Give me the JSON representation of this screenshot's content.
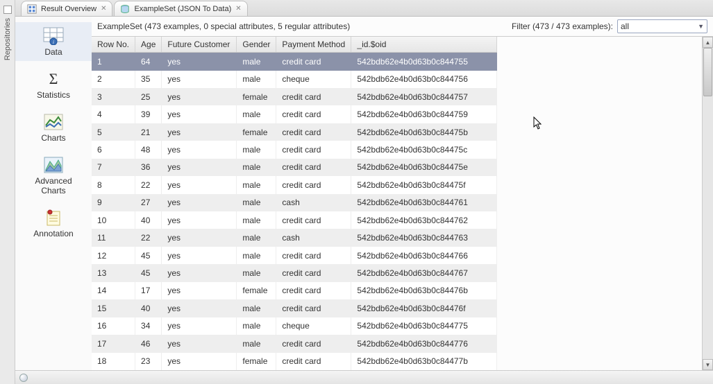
{
  "leftRail": {
    "label": "Repositories"
  },
  "tabs": [
    {
      "label": "Result Overview",
      "icon": "result-icon"
    },
    {
      "label": "ExampleSet (JSON To Data)",
      "icon": "db-icon"
    }
  ],
  "viewNav": {
    "items": [
      {
        "id": "data",
        "label": "Data",
        "active": true
      },
      {
        "id": "stats",
        "label": "Statistics",
        "active": false
      },
      {
        "id": "charts",
        "label": "Charts",
        "active": false
      },
      {
        "id": "advcharts",
        "label": "Advanced\nCharts",
        "active": false
      },
      {
        "id": "annotation",
        "label": "Annotation",
        "active": false
      }
    ]
  },
  "topbar": {
    "summary": "ExampleSet (473 examples, 0 special attributes, 5 regular attributes)",
    "filterLabel": "Filter (473 / 473 examples):",
    "filterValue": "all"
  },
  "table": {
    "columns": [
      "Row No.",
      "Age",
      "Future Customer",
      "Gender",
      "Payment Method",
      "_id.$oid"
    ],
    "colClasses": [
      "col-row",
      "col-age",
      "col-future",
      "col-gender",
      "col-pay",
      "col-id"
    ],
    "selectedRow": 0,
    "rows": [
      [
        "1",
        "64",
        "yes",
        "male",
        "credit card",
        "542bdb62e4b0d63b0c844755"
      ],
      [
        "2",
        "35",
        "yes",
        "male",
        "cheque",
        "542bdb62e4b0d63b0c844756"
      ],
      [
        "3",
        "25",
        "yes",
        "female",
        "credit card",
        "542bdb62e4b0d63b0c844757"
      ],
      [
        "4",
        "39",
        "yes",
        "male",
        "credit card",
        "542bdb62e4b0d63b0c844759"
      ],
      [
        "5",
        "21",
        "yes",
        "female",
        "credit card",
        "542bdb62e4b0d63b0c84475b"
      ],
      [
        "6",
        "48",
        "yes",
        "male",
        "credit card",
        "542bdb62e4b0d63b0c84475c"
      ],
      [
        "7",
        "36",
        "yes",
        "male",
        "credit card",
        "542bdb62e4b0d63b0c84475e"
      ],
      [
        "8",
        "22",
        "yes",
        "male",
        "credit card",
        "542bdb62e4b0d63b0c84475f"
      ],
      [
        "9",
        "27",
        "yes",
        "male",
        "cash",
        "542bdb62e4b0d63b0c844761"
      ],
      [
        "10",
        "40",
        "yes",
        "male",
        "credit card",
        "542bdb62e4b0d63b0c844762"
      ],
      [
        "11",
        "22",
        "yes",
        "male",
        "cash",
        "542bdb62e4b0d63b0c844763"
      ],
      [
        "12",
        "45",
        "yes",
        "male",
        "credit card",
        "542bdb62e4b0d63b0c844766"
      ],
      [
        "13",
        "45",
        "yes",
        "male",
        "credit card",
        "542bdb62e4b0d63b0c844767"
      ],
      [
        "14",
        "17",
        "yes",
        "female",
        "credit card",
        "542bdb62e4b0d63b0c84476b"
      ],
      [
        "15",
        "40",
        "yes",
        "male",
        "credit card",
        "542bdb62e4b0d63b0c84476f"
      ],
      [
        "16",
        "34",
        "yes",
        "male",
        "cheque",
        "542bdb62e4b0d63b0c844775"
      ],
      [
        "17",
        "46",
        "yes",
        "male",
        "credit card",
        "542bdb62e4b0d63b0c844776"
      ],
      [
        "18",
        "23",
        "yes",
        "female",
        "credit card",
        "542bdb62e4b0d63b0c84477b"
      ]
    ]
  },
  "colors": {
    "selectedRow": "#8b92a9",
    "rowAlt": "#eeeeee",
    "headerGradTop": "#f4f4f4",
    "headerGradBot": "#e6e6e6"
  }
}
